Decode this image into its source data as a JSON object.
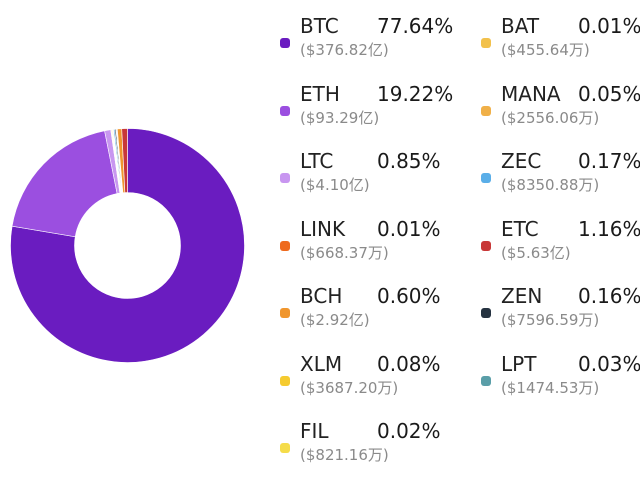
{
  "chart_data": {
    "type": "pie",
    "categories": [
      "BTC",
      "ETH",
      "LTC",
      "LINK",
      "BCH",
      "XLM",
      "FIL",
      "BAT",
      "MANA",
      "ZEC",
      "ETC",
      "ZEN",
      "LPT"
    ],
    "values": [
      77.64,
      19.22,
      0.85,
      0.01,
      0.6,
      0.08,
      0.02,
      0.01,
      0.05,
      0.17,
      1.16,
      0.16,
      0.03
    ],
    "donut": true,
    "legend_placement": "right"
  },
  "legend": [
    {
      "symbol": "BTC",
      "pct": "77.64%",
      "amount": "($376.82亿)",
      "color": "#6a1cc0"
    },
    {
      "symbol": "ETH",
      "pct": "19.22%",
      "amount": "($93.29亿)",
      "color": "#9b4fe0"
    },
    {
      "symbol": "LTC",
      "pct": "0.85%",
      "amount": "($4.10亿)",
      "color": "#c896f0"
    },
    {
      "symbol": "LINK",
      "pct": "0.01%",
      "amount": "($668.37万)",
      "color": "#ee6a1e"
    },
    {
      "symbol": "BCH",
      "pct": "0.60%",
      "amount": "($2.92亿)",
      "color": "#f0962e"
    },
    {
      "symbol": "XLM",
      "pct": "0.08%",
      "amount": "($3687.20万)",
      "color": "#f5cb30"
    },
    {
      "symbol": "FIL",
      "pct": "0.02%",
      "amount": "($821.16万)",
      "color": "#f5dc4a"
    },
    {
      "symbol": "BAT",
      "pct": "0.01%",
      "amount": "($455.64万)",
      "color": "#f2c14c"
    },
    {
      "symbol": "MANA",
      "pct": "0.05%",
      "amount": "($2556.06万)",
      "color": "#f0b048"
    },
    {
      "symbol": "ZEC",
      "pct": "0.17%",
      "amount": "($8350.88万)",
      "color": "#5aaee8"
    },
    {
      "symbol": "ETC",
      "pct": "1.16%",
      "amount": "($5.63亿)",
      "color": "#c83838"
    },
    {
      "symbol": "ZEN",
      "pct": "0.16%",
      "amount": "($7596.59万)",
      "color": "#253240"
    },
    {
      "symbol": "LPT",
      "pct": "0.03%",
      "amount": "($1474.53万)",
      "color": "#5a9ea8"
    }
  ]
}
